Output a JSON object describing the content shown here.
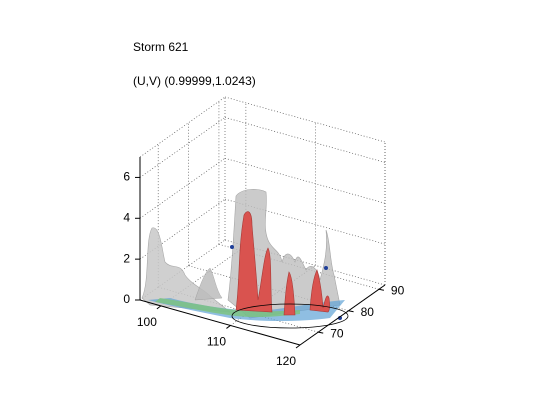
{
  "chart_data": {
    "type": "isosurface3d",
    "title": "Storm 621",
    "subtitle": "(U,V) (0.99999,1.0243)",
    "xlim": [
      97,
      120
    ],
    "xticks": [
      100,
      110,
      120
    ],
    "ylim": [
      64,
      92
    ],
    "yticks": [
      70,
      80,
      90
    ],
    "zlim": [
      0,
      7
    ],
    "zticks": [
      0,
      2,
      4,
      6
    ],
    "grid": true
  }
}
